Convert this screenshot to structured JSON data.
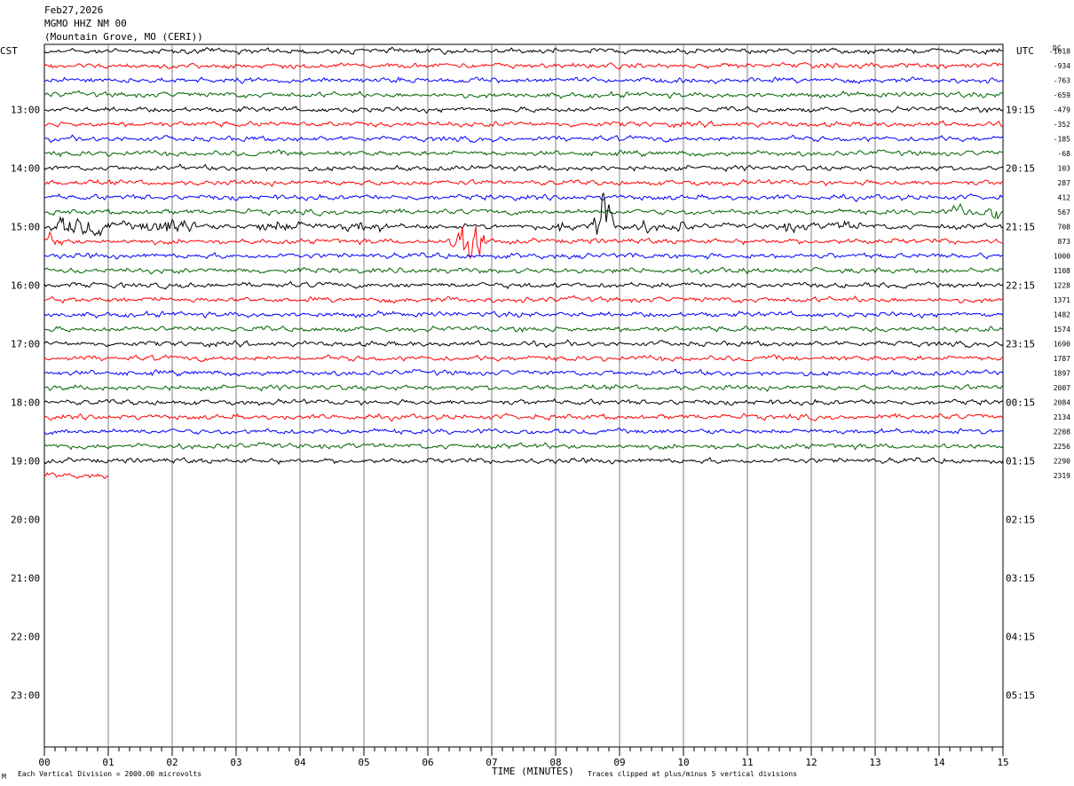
{
  "header": {
    "date": "Feb27,2026",
    "station": "MGMO HHZ NM 00",
    "location": "(Mountain Grove, MO (CERI))"
  },
  "chart_data": {
    "type": "line",
    "title": "",
    "left_axis_label": "CST",
    "right_axis_label": "UTC",
    "dc_label": "DC",
    "xlabel": "TIME (MINUTES)",
    "xlim": [
      0,
      15
    ],
    "x_ticks": [
      "00",
      "01",
      "02",
      "03",
      "04",
      "05",
      "06",
      "07",
      "08",
      "09",
      "10",
      "11",
      "12",
      "13",
      "14",
      "15"
    ],
    "left_hour_labels": [
      "13:00",
      "14:00",
      "15:00",
      "16:00",
      "17:00",
      "18:00",
      "19:00",
      "20:00",
      "21:00",
      "22:00",
      "23:00"
    ],
    "right_hour_labels": [
      "19:15",
      "20:15",
      "21:15",
      "22:15",
      "23:15",
      "00:15",
      "01:15",
      "02:15",
      "03:15",
      "04:15",
      "05:15"
    ],
    "trace_colors": [
      "#000000",
      "#ff0000",
      "#0000ff",
      "#006400"
    ],
    "dc_offsets": [
      "-1018",
      "-934",
      "-763",
      "-659",
      "-479",
      "-352",
      "-185",
      "-68",
      "103",
      "287",
      "412",
      "567",
      "708",
      "873",
      "1000",
      "1108",
      "1228",
      "1371",
      "1482",
      "1574",
      "1690",
      "1787",
      "1897",
      "2007",
      "2084",
      "2134",
      "2208",
      "2256",
      "2290",
      "2319"
    ],
    "traces_total": 30,
    "last_trace_minutes": 1.0,
    "events": [
      {
        "trace": 12,
        "start_min": 0.1,
        "end_min": 2.4,
        "amp": 0.75,
        "type": "noise"
      },
      {
        "trace": 12,
        "start_min": 3.3,
        "end_min": 5.3,
        "amp": 0.4,
        "type": "noise"
      },
      {
        "trace": 12,
        "start_min": 8.5,
        "end_min": 9.2,
        "amp": 1.8,
        "type": "quake"
      },
      {
        "trace": 12,
        "start_min": 7.9,
        "end_min": 8.6,
        "amp": 0.45,
        "type": "noise"
      },
      {
        "trace": 12,
        "start_min": 9.2,
        "end_min": 10.1,
        "amp": 0.35,
        "type": "noise"
      },
      {
        "trace": 12,
        "start_min": 11.4,
        "end_min": 12.8,
        "amp": 0.3,
        "type": "noise"
      },
      {
        "trace": 13,
        "start_min": 6.35,
        "end_min": 7.2,
        "amp": 1.6,
        "type": "quake"
      },
      {
        "trace": 13,
        "start_min": 0.0,
        "end_min": 0.3,
        "amp": 0.5,
        "type": "noise"
      },
      {
        "trace": 11,
        "start_min": 14.2,
        "end_min": 15.0,
        "amp": 0.5,
        "type": "noise"
      }
    ],
    "grid": "vertical minute lines",
    "footer_left": "Each Vertical Division = 2000.00 microvolts",
    "footer_right": "Traces clipped at plus/minus 5 vertical divisions",
    "corner_mark": "M"
  }
}
